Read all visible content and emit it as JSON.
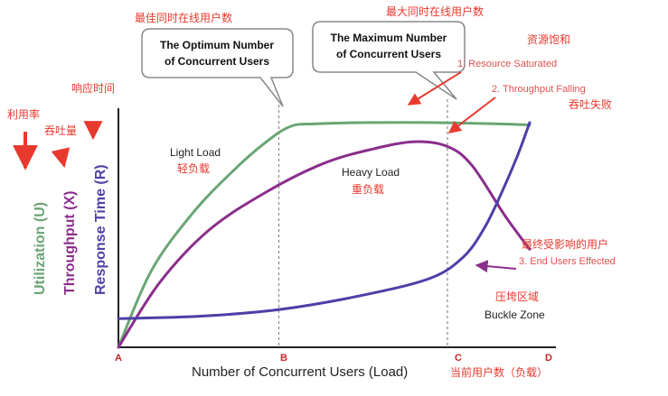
{
  "colors": {
    "utilization": "#6aa574",
    "throughput": "#8a2e8c",
    "response_time": "#4d3fa8",
    "annotation": "#e8392e",
    "point_label": "#c62828",
    "axis": "#222222",
    "marker_line": "#888888"
  },
  "chart_data": {
    "type": "line",
    "x_points": [
      "A",
      "B",
      "C",
      "D"
    ],
    "xlabel": "Number of  Concurrent Users (Load)",
    "xlabel_cn": "当前用户数（负载）",
    "y_axes": [
      {
        "name": "Utilization (U)",
        "cn": "利用率"
      },
      {
        "name": "Throughput (X)",
        "cn": "吞吐量"
      },
      {
        "name": "Response Time (R)",
        "cn": "响应时间"
      }
    ],
    "series": [
      {
        "name": "Utilization (U)",
        "key": "utilization",
        "points": [
          [
            0,
            0
          ],
          [
            0.08,
            0.32
          ],
          [
            0.18,
            0.56
          ],
          [
            0.28,
            0.74
          ],
          [
            0.36,
            0.86
          ],
          [
            0.42,
            0.925
          ],
          [
            0.48,
            0.935
          ],
          [
            0.6,
            0.94
          ],
          [
            0.76,
            0.94
          ],
          [
            0.92,
            0.935
          ],
          [
            1.0,
            0.93
          ]
        ]
      },
      {
        "name": "Throughput (X)",
        "key": "throughput",
        "points": [
          [
            0,
            0
          ],
          [
            0.1,
            0.27
          ],
          [
            0.22,
            0.49
          ],
          [
            0.36,
            0.65
          ],
          [
            0.5,
            0.77
          ],
          [
            0.62,
            0.83
          ],
          [
            0.72,
            0.86
          ],
          [
            0.8,
            0.84
          ],
          [
            0.86,
            0.76
          ],
          [
            0.94,
            0.55
          ],
          [
            1.0,
            0.41
          ]
        ]
      },
      {
        "name": "Response Time (R)",
        "key": "response_time",
        "points": [
          [
            0,
            0.12
          ],
          [
            0.2,
            0.13
          ],
          [
            0.4,
            0.16
          ],
          [
            0.6,
            0.22
          ],
          [
            0.76,
            0.29
          ],
          [
            0.84,
            0.38
          ],
          [
            0.89,
            0.5
          ],
          [
            0.93,
            0.64
          ],
          [
            0.97,
            0.8
          ],
          [
            1.0,
            0.94
          ]
        ]
      }
    ],
    "markers": [
      {
        "label": "B",
        "x": 0.39
      },
      {
        "label": "C",
        "x": 0.8
      }
    ],
    "regions": [
      {
        "name": "Light Load",
        "cn": "轻负载"
      },
      {
        "name": "Heavy Load",
        "cn": "重负载"
      },
      {
        "name": "Buckle Zone",
        "cn": "压垮区域"
      }
    ],
    "annotations": {
      "optimum": {
        "text_line1": "The Optimum Number",
        "text_line2": "of Concurrent Users",
        "cn": "最佳同时在线用户数"
      },
      "maximum": {
        "text_line1": "The Maximum  Number",
        "text_line2": "of Concurrent Users",
        "cn": "最大同时在线用户数"
      },
      "numbered": [
        {
          "text": "1. Resource Saturated",
          "cn": "资源饱和"
        },
        {
          "text": "2. Throughput Falling",
          "cn": "吞吐失败"
        },
        {
          "text": "3. End Users Effected",
          "cn": "最终受影响的用户"
        }
      ]
    }
  }
}
